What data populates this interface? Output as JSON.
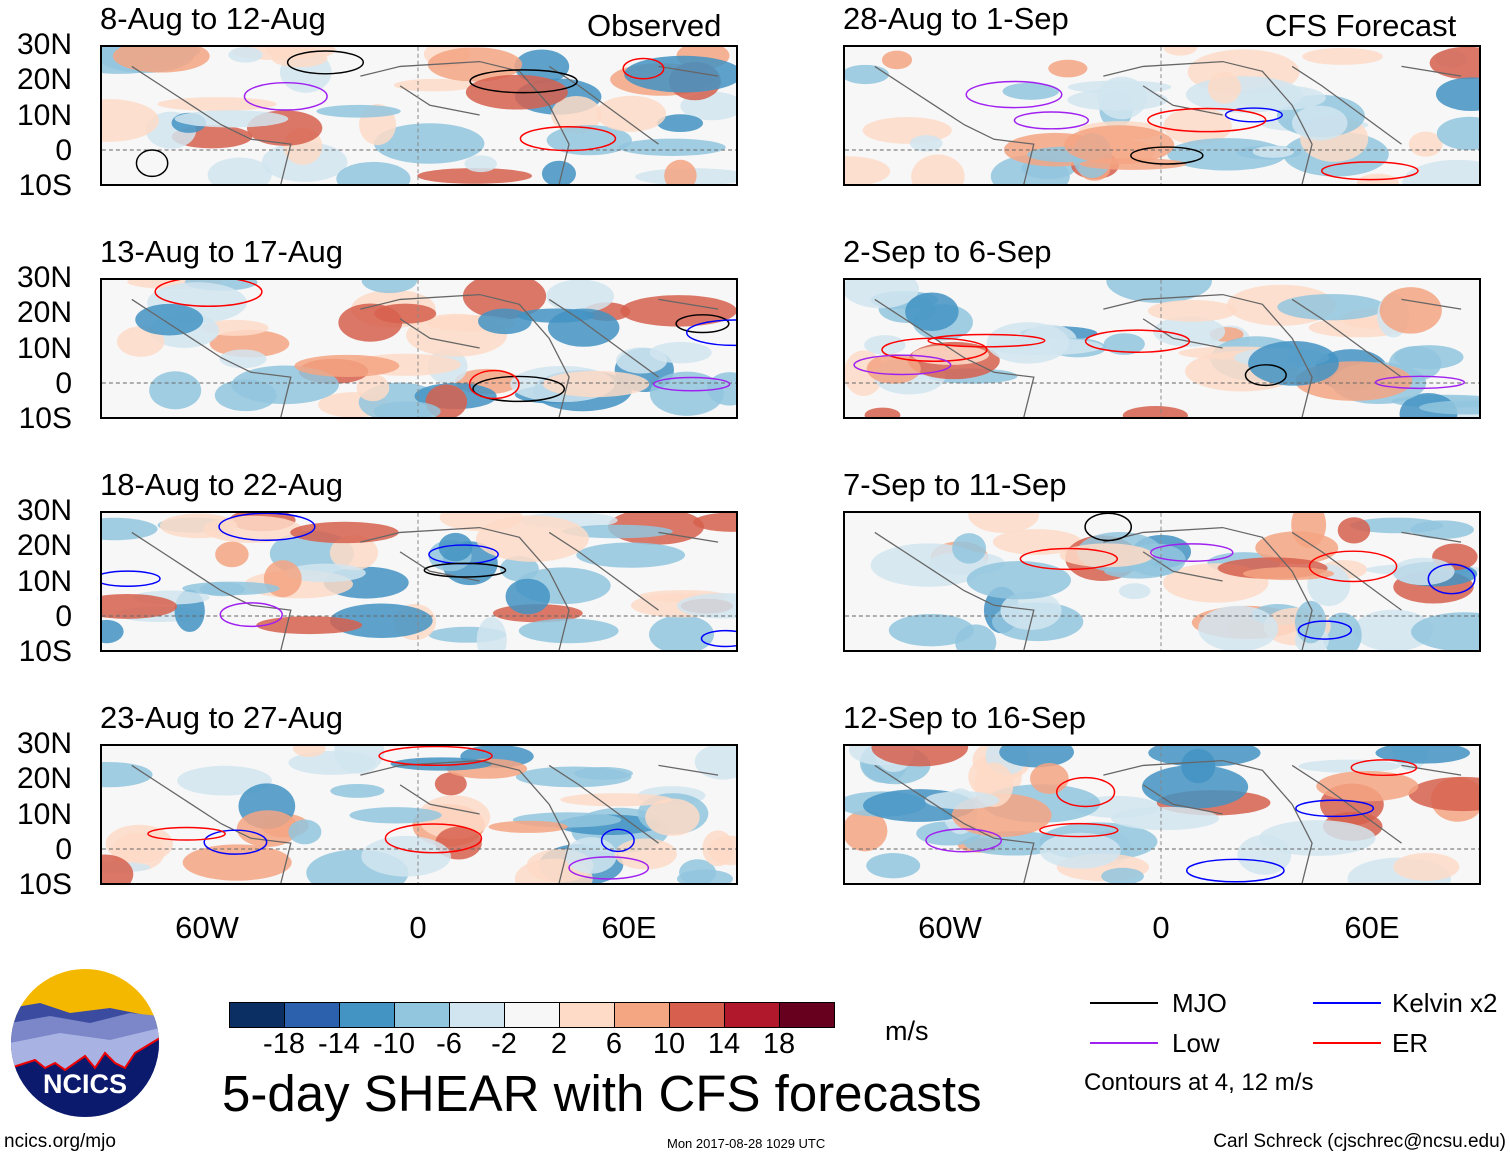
{
  "header": {
    "observed_label": "Observed",
    "forecast_label": "CFS Forecast"
  },
  "panels": {
    "observed": [
      {
        "title": "8-Aug to 12-Aug"
      },
      {
        "title": "13-Aug to 17-Aug"
      },
      {
        "title": "18-Aug to 22-Aug"
      },
      {
        "title": "23-Aug to 27-Aug"
      }
    ],
    "forecast": [
      {
        "title": "28-Aug to 1-Sep"
      },
      {
        "title": "2-Sep to 6-Sep"
      },
      {
        "title": "7-Sep to 11-Sep"
      },
      {
        "title": "12-Sep to 16-Sep"
      }
    ]
  },
  "axes": {
    "lat_labels": [
      "30N",
      "20N",
      "10N",
      "0",
      "10S"
    ],
    "lon_labels": [
      "60W",
      "0",
      "60E"
    ]
  },
  "colorbar": {
    "labels": [
      "-18",
      "-14",
      "-10",
      "-6",
      "-2",
      "2",
      "6",
      "10",
      "14",
      "18"
    ],
    "colors": [
      "#0b2f63",
      "#2c62ad",
      "#4393c3",
      "#92c5de",
      "#d1e5f0",
      "#f7f7f7",
      "#fddbc7",
      "#f4a582",
      "#d6604d",
      "#b2182b",
      "#67001f"
    ],
    "units": "m/s"
  },
  "title": "5-day SHEAR with CFS forecasts",
  "legend": {
    "items": [
      {
        "label": "MJO",
        "color": "#000000"
      },
      {
        "label": "Kelvin x2",
        "color": "#0000ff"
      },
      {
        "label": "Low",
        "color": "#a020f0"
      },
      {
        "label": "ER",
        "color": "#ff0000"
      }
    ],
    "note": "Contours at 4, 12 m/s"
  },
  "logo": {
    "text": "NCICS"
  },
  "footer": {
    "url": "ncics.org/mjo",
    "timestamp": "Mon 2017-08-28 1029 UTC",
    "credit": "Carl Schreck (cjschrec@ncsu.edu)"
  }
}
